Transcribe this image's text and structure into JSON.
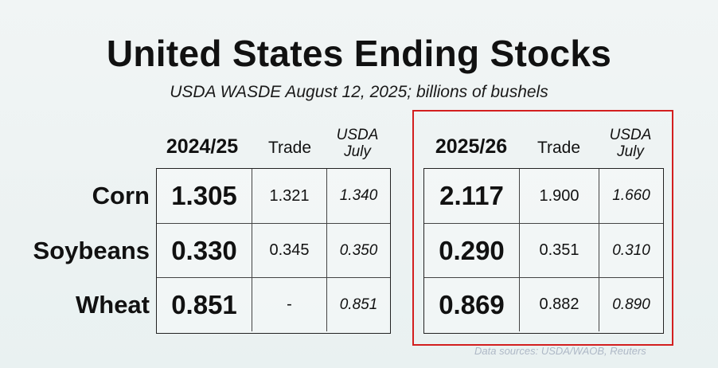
{
  "title": "United States Ending Stocks",
  "subtitle": "USDA WASDE August 12, 2025; billions of bushels",
  "table_left": {
    "year_label": "2024/25",
    "trade_label": "Trade",
    "usda_label_line1": "USDA",
    "usda_label_line2": "July",
    "rows": [
      {
        "value": "1.305",
        "trade": "1.321",
        "usda": "1.340"
      },
      {
        "value": "0.330",
        "trade": "0.345",
        "usda": "0.350"
      },
      {
        "value": "0.851",
        "trade": "-",
        "usda": "0.851"
      }
    ]
  },
  "table_right": {
    "year_label": "2025/26",
    "trade_label": "Trade",
    "usda_label_line1": "USDA",
    "usda_label_line2": "July",
    "rows": [
      {
        "value": "2.117",
        "trade": "1.900",
        "usda": "1.660"
      },
      {
        "value": "0.290",
        "trade": "0.351",
        "usda": "0.310"
      },
      {
        "value": "0.869",
        "trade": "0.882",
        "usda": "0.890"
      }
    ]
  },
  "row_labels": [
    "Corn",
    "Soybeans",
    "Wheat"
  ],
  "source": "Data sources: USDA/WAOB, Reuters",
  "highlight_color": "#d31f1f"
}
